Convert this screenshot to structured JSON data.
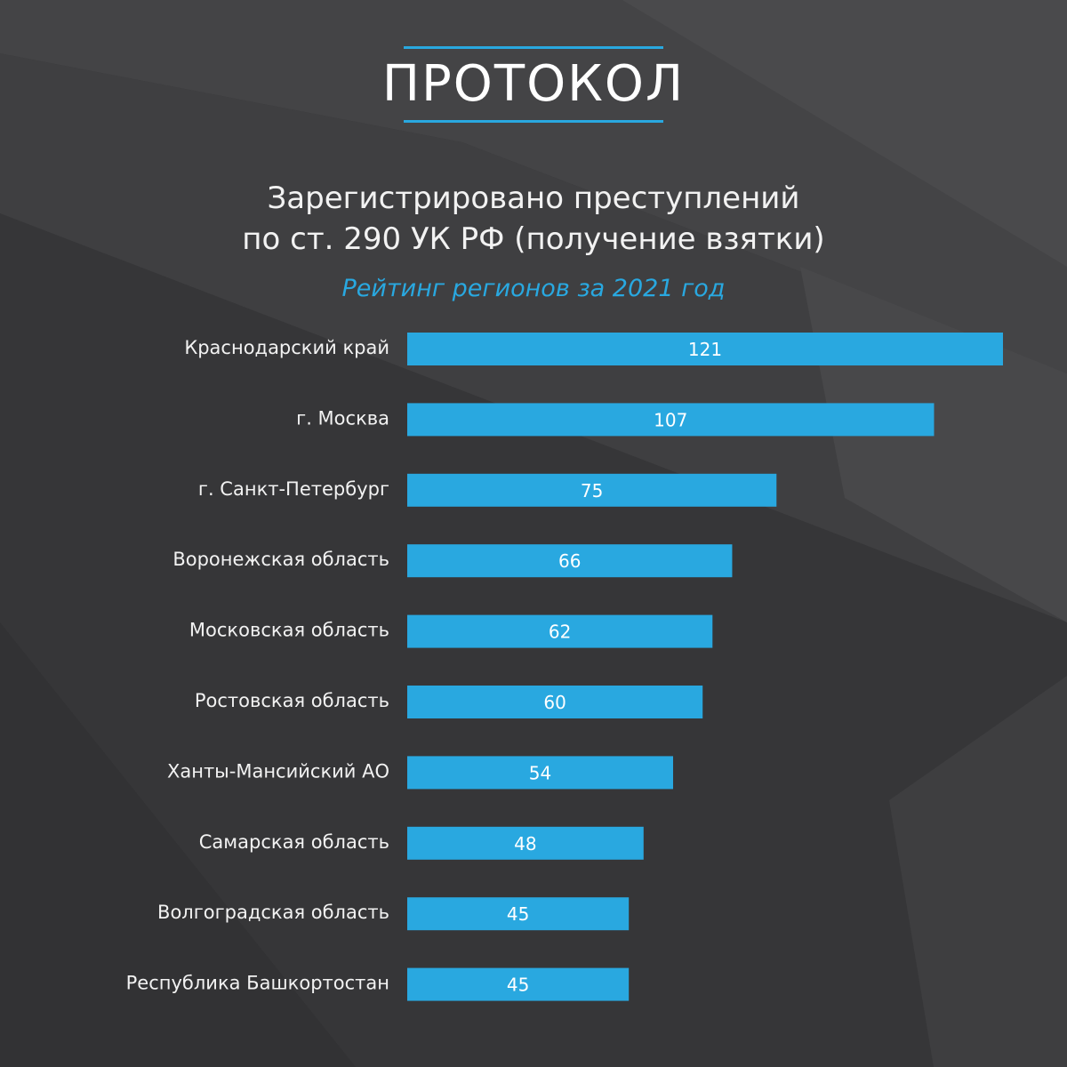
{
  "logo": {
    "text": "ПРОТОКОЛ"
  },
  "header": {
    "title_line1": "Зарегистрировано преступлений",
    "title_line2": "по ст. 290 УК РФ (получение взятки)",
    "subtitle": "Рейтинг регионов за 2021 год"
  },
  "colors": {
    "bar": "#29a8e0",
    "accent": "#29a8e0",
    "background": "#3a3a3c"
  },
  "chart_data": {
    "type": "bar",
    "orientation": "horizontal",
    "categories": [
      "Краснодарский край",
      "г. Москва",
      "г. Санкт-Петербург",
      "Воронежская область",
      "Московская область",
      "Ростовская область",
      "Ханты-Мансийский АО",
      "Самарская область",
      "Волгоградская область",
      "Республика Башкортостан"
    ],
    "values": [
      121,
      107,
      75,
      66,
      62,
      60,
      54,
      48,
      45,
      45
    ],
    "value_labels": [
      "121",
      "107",
      "75",
      "66",
      "62",
      "60",
      "54",
      "48",
      "45",
      "45"
    ],
    "title": "Зарегистрировано преступлений по ст. 290 УК РФ (получение взятки)",
    "subtitle": "Рейтинг регионов за 2021 год",
    "grid": false,
    "legend": "none"
  }
}
